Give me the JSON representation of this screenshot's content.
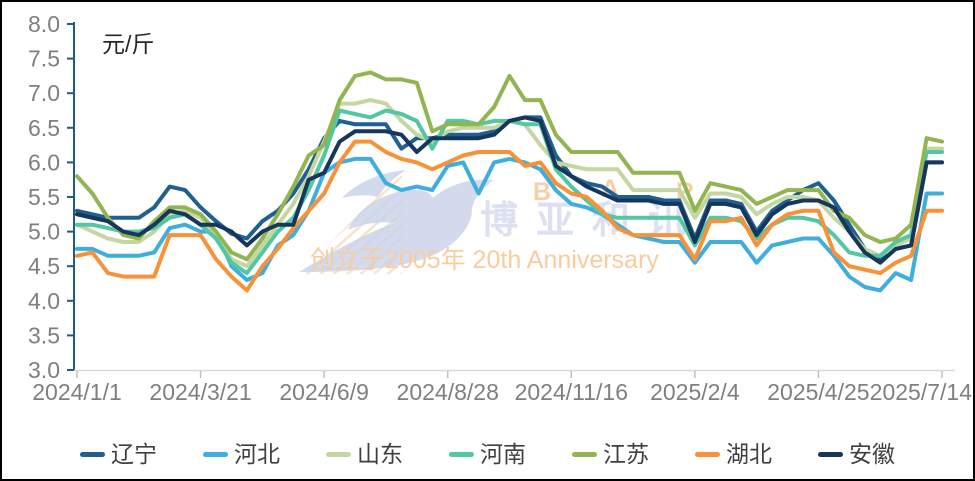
{
  "frame": {
    "border_color": "#000000",
    "background_color": "#ffffff"
  },
  "watermark": {
    "cn_text": "博亚和讯",
    "letters": [
      "B",
      "A",
      "R"
    ],
    "anniversary_text": "创立于2005年 20th Anniversary",
    "colors": {
      "swoosh": "#c9d2e9",
      "hatch": "#fadec2",
      "cn_text": "#dce0f2",
      "letters": "#f6cfa4",
      "anniversary": "#f8cc9e"
    }
  },
  "chart_data": {
    "type": "line",
    "title": "",
    "unit_label": "元/斤",
    "xlabel": "",
    "ylabel": "",
    "ylim": [
      3.0,
      8.0
    ],
    "grid": false,
    "legend_position": "bottom",
    "y_ticks": [
      3.0,
      3.5,
      4.0,
      4.5,
      5.0,
      5.5,
      6.0,
      6.5,
      7.0,
      7.5,
      8.0
    ],
    "x_ticks": [
      {
        "label": "2024/1/1",
        "day": 0
      },
      {
        "label": "2024/3/21",
        "day": 80
      },
      {
        "label": "2024/6/9",
        "day": 160
      },
      {
        "label": "2024/8/28",
        "day": 240
      },
      {
        "label": "2024/11/16",
        "day": 320
      },
      {
        "label": "2025/2/4",
        "day": 400
      },
      {
        "label": "2025/4/25",
        "day": 480
      },
      {
        "label": "2025/7/14",
        "day": 560
      }
    ],
    "x_days": [
      0,
      10,
      20,
      30,
      40,
      50,
      60,
      70,
      80,
      90,
      100,
      110,
      120,
      130,
      140,
      150,
      160,
      170,
      180,
      190,
      200,
      210,
      220,
      230,
      240,
      250,
      260,
      270,
      280,
      290,
      300,
      310,
      320,
      330,
      340,
      350,
      360,
      370,
      380,
      390,
      400,
      410,
      420,
      430,
      440,
      450,
      460,
      470,
      480,
      490,
      500,
      510,
      520,
      530,
      540,
      550,
      560
    ],
    "axis": {
      "y_axis_color": "#1f5c80",
      "x_axis_color": "#d9d9d9",
      "x_tick_color": "#bfbfbf",
      "tick_label_color": "#7f7f7f",
      "unit_label_color": "#262626"
    },
    "series": [
      {
        "name": "辽宁",
        "color": "#1f6091",
        "values": [
          5.3,
          5.25,
          5.2,
          5.2,
          5.2,
          5.35,
          5.65,
          5.6,
          5.35,
          5.15,
          4.97,
          4.9,
          5.15,
          5.3,
          5.55,
          5.9,
          6.35,
          6.6,
          6.55,
          6.55,
          6.55,
          6.2,
          6.35,
          6.35,
          6.4,
          6.4,
          6.4,
          6.45,
          6.6,
          6.65,
          6.65,
          6.1,
          5.8,
          5.7,
          5.65,
          5.5,
          5.5,
          5.5,
          5.45,
          5.45,
          4.9,
          5.45,
          5.45,
          5.4,
          5.0,
          5.3,
          5.45,
          5.6,
          5.7,
          5.45,
          5.1,
          4.75,
          4.6,
          4.75,
          4.8,
          6.0,
          6.0
        ]
      },
      {
        "name": "河北",
        "color": "#3faede",
        "values": [
          4.75,
          4.75,
          4.65,
          4.65,
          4.65,
          4.7,
          5.05,
          5.1,
          5.0,
          5.0,
          4.5,
          4.3,
          4.4,
          4.8,
          4.95,
          5.3,
          5.85,
          6.0,
          6.05,
          6.05,
          5.7,
          5.6,
          5.65,
          5.6,
          5.95,
          6.0,
          5.55,
          6.0,
          6.05,
          6.0,
          5.9,
          5.6,
          5.4,
          5.35,
          5.25,
          5.1,
          4.95,
          4.9,
          4.85,
          4.85,
          4.55,
          4.85,
          4.85,
          4.85,
          4.55,
          4.8,
          4.85,
          4.9,
          4.9,
          4.65,
          4.35,
          4.2,
          4.15,
          4.4,
          4.3,
          5.55,
          5.55
        ]
      },
      {
        "name": "山东",
        "color": "#c5d6a2",
        "values": [
          5.1,
          5.0,
          4.9,
          4.85,
          4.85,
          5.0,
          5.25,
          5.3,
          5.2,
          4.95,
          4.6,
          4.5,
          4.8,
          5.1,
          5.4,
          5.8,
          6.3,
          6.85,
          6.85,
          6.9,
          6.85,
          6.6,
          6.4,
          6.3,
          6.45,
          6.5,
          6.5,
          6.5,
          6.6,
          6.55,
          6.25,
          6.0,
          5.95,
          5.9,
          5.9,
          5.9,
          5.6,
          5.6,
          5.6,
          5.6,
          5.2,
          5.55,
          5.55,
          5.5,
          5.25,
          5.4,
          5.5,
          5.5,
          5.45,
          5.2,
          5.0,
          4.75,
          4.65,
          4.8,
          4.9,
          6.2,
          6.2
        ]
      },
      {
        "name": "河南",
        "color": "#53c6a2",
        "values": [
          5.1,
          5.1,
          5.05,
          5.0,
          5.0,
          5.05,
          5.2,
          5.25,
          5.1,
          4.9,
          4.55,
          4.4,
          4.7,
          5.0,
          5.2,
          5.6,
          6.1,
          6.75,
          6.7,
          6.65,
          6.75,
          6.7,
          6.6,
          6.2,
          6.6,
          6.6,
          6.55,
          6.6,
          6.6,
          6.55,
          6.55,
          5.9,
          5.65,
          5.45,
          5.25,
          5.2,
          5.2,
          5.2,
          5.2,
          5.2,
          4.8,
          5.2,
          5.2,
          5.15,
          4.9,
          5.1,
          5.2,
          5.2,
          5.15,
          4.95,
          4.7,
          4.65,
          4.65,
          4.85,
          4.95,
          6.15,
          6.15
        ]
      },
      {
        "name": "江苏",
        "color": "#92b451",
        "values": [
          5.8,
          5.55,
          5.2,
          4.95,
          4.9,
          5.15,
          5.35,
          5.35,
          5.25,
          5.0,
          4.7,
          4.6,
          4.9,
          5.25,
          5.65,
          6.1,
          6.25,
          6.9,
          7.25,
          7.3,
          7.2,
          7.2,
          7.15,
          6.45,
          6.55,
          6.55,
          6.55,
          6.8,
          7.25,
          6.9,
          6.9,
          6.4,
          6.15,
          6.15,
          6.15,
          6.15,
          5.85,
          5.85,
          5.85,
          5.85,
          5.3,
          5.7,
          5.65,
          5.6,
          5.4,
          5.5,
          5.6,
          5.6,
          5.6,
          5.3,
          5.2,
          4.95,
          4.85,
          4.9,
          5.1,
          6.35,
          6.3
        ]
      },
      {
        "name": "湖北",
        "color": "#f79239",
        "values": [
          4.65,
          4.7,
          4.4,
          4.35,
          4.35,
          4.35,
          4.95,
          4.95,
          4.95,
          4.6,
          4.35,
          4.15,
          4.5,
          4.75,
          5.05,
          5.3,
          5.55,
          6.0,
          6.3,
          6.3,
          6.15,
          6.05,
          6.0,
          5.9,
          6.0,
          6.1,
          6.15,
          6.15,
          6.15,
          5.95,
          6.0,
          5.7,
          5.55,
          5.5,
          5.3,
          5.05,
          4.95,
          4.95,
          4.95,
          4.95,
          4.6,
          5.15,
          5.15,
          5.2,
          4.8,
          5.1,
          5.25,
          5.3,
          5.3,
          4.7,
          4.5,
          4.45,
          4.4,
          4.55,
          4.65,
          5.3,
          5.3
        ]
      },
      {
        "name": "安徽",
        "color": "#16365c",
        "values": [
          5.25,
          5.2,
          5.15,
          5.0,
          4.95,
          5.1,
          5.3,
          5.25,
          5.1,
          5.1,
          5.0,
          4.8,
          5.0,
          5.1,
          5.1,
          5.75,
          5.85,
          6.3,
          6.45,
          6.45,
          6.45,
          6.4,
          6.15,
          6.35,
          6.35,
          6.35,
          6.35,
          6.4,
          6.6,
          6.65,
          6.6,
          5.95,
          5.8,
          5.65,
          5.55,
          5.45,
          5.45,
          5.45,
          5.4,
          5.4,
          4.85,
          5.4,
          5.4,
          5.35,
          4.95,
          5.25,
          5.4,
          5.45,
          5.45,
          5.35,
          5.0,
          4.7,
          4.55,
          4.75,
          4.8,
          6.0,
          6.0
        ]
      }
    ]
  }
}
